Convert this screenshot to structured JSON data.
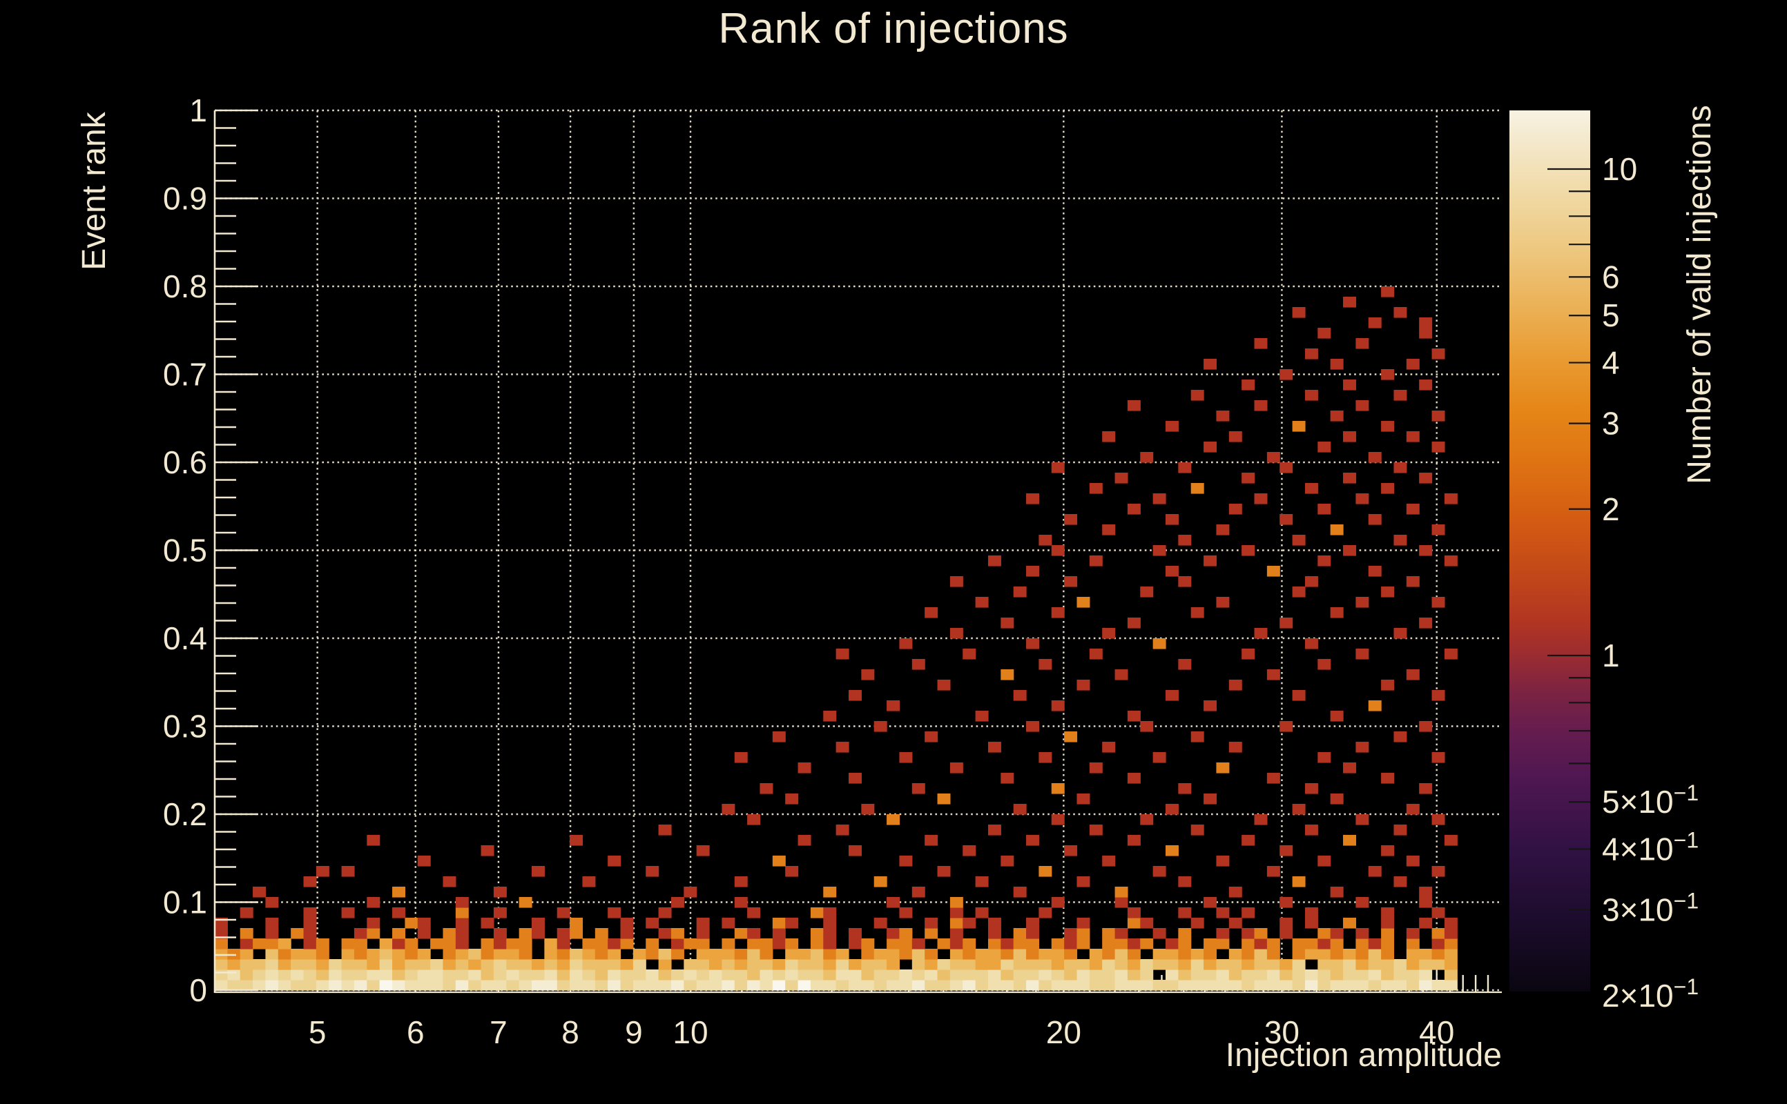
{
  "chart_data": {
    "type": "heatmap",
    "title": "Rank of injections",
    "xlabel": "Injection amplitude",
    "ylabel": "Event rank",
    "zlabel": "Number of valid injections",
    "x_scale": "log",
    "x_range": [
      4.13,
      45
    ],
    "x_ticks": [
      5,
      6,
      7,
      8,
      9,
      10,
      20,
      30,
      40
    ],
    "x_tick_labels": [
      "5",
      "6",
      "7",
      "8",
      "9",
      "10",
      "20",
      "30",
      "40"
    ],
    "x_minor_ticks": [
      11,
      12,
      13,
      14,
      15,
      16,
      17,
      18,
      19,
      21,
      22,
      23,
      24,
      25,
      26,
      27,
      28,
      29,
      31,
      32,
      33,
      34,
      35,
      36,
      37,
      38,
      39,
      41,
      42,
      43,
      44
    ],
    "y_scale": "linear",
    "y_range": [
      0,
      1
    ],
    "y_ticks": [
      0,
      0.1,
      0.2,
      0.3,
      0.4,
      0.5,
      0.6,
      0.7,
      0.8,
      0.9,
      1
    ],
    "y_tick_labels": [
      "0",
      "0.1",
      "0.2",
      "0.3",
      "0.4",
      "0.5",
      "0.6",
      "0.7",
      "0.8",
      "0.9",
      "1"
    ],
    "y_minor_step": 0.02,
    "z_scale": "log",
    "z_range": [
      0.2,
      13
    ],
    "grid": true,
    "colors": {
      "background": "#000000",
      "axis_text": "#f2e9d0",
      "gridline": "#efe6cc",
      "colorbar_tick": "#141414"
    },
    "z_tick_labels": [
      {
        "v": 10,
        "text": "10",
        "sup": null,
        "long": true
      },
      {
        "v": 6,
        "text": "6",
        "sup": null,
        "long": false
      },
      {
        "v": 5,
        "text": "5",
        "sup": null,
        "long": false
      },
      {
        "v": 4,
        "text": "4",
        "sup": null,
        "long": false
      },
      {
        "v": 3,
        "text": "3",
        "sup": null,
        "long": false
      },
      {
        "v": 2,
        "text": "2",
        "sup": null,
        "long": false
      },
      {
        "v": 1,
        "text": "1",
        "sup": null,
        "long": true
      },
      {
        "v": 0.5,
        "text": "5×10",
        "sup": "−1",
        "long": false
      },
      {
        "v": 0.4,
        "text": "4×10",
        "sup": "−1",
        "long": false
      },
      {
        "v": 0.3,
        "text": "3×10",
        "sup": "−1",
        "long": false
      },
      {
        "v": 0.2,
        "text": "2×10",
        "sup": "−1",
        "long": false
      }
    ],
    "z_unlabeled_ticks": [
      9,
      8,
      7,
      6,
      5,
      4,
      3,
      2,
      0.9,
      0.8,
      0.7,
      0.6,
      0.5,
      0.4,
      0.3
    ],
    "palette_stops": [
      {
        "offset": 0.0,
        "color": "#0a0610"
      },
      {
        "offset": 0.08,
        "color": "#1c0c2c"
      },
      {
        "offset": 0.16,
        "color": "#301143"
      },
      {
        "offset": 0.24,
        "color": "#4e1752"
      },
      {
        "offset": 0.3,
        "color": "#671d4e"
      },
      {
        "offset": 0.34,
        "color": "#7c2342"
      },
      {
        "offset": 0.38,
        "color": "#9a2c31"
      },
      {
        "offset": 0.42,
        "color": "#b23522"
      },
      {
        "offset": 0.48,
        "color": "#c44a18"
      },
      {
        "offset": 0.54,
        "color": "#d55d12"
      },
      {
        "offset": 0.6,
        "color": "#df7313"
      },
      {
        "offset": 0.66,
        "color": "#e58617"
      },
      {
        "offset": 0.72,
        "color": "#e99c33"
      },
      {
        "offset": 0.78,
        "color": "#ebb258"
      },
      {
        "offset": 0.84,
        "color": "#edc77e"
      },
      {
        "offset": 0.9,
        "color": "#f0d8a2"
      },
      {
        "offset": 0.95,
        "color": "#f3e5c2"
      },
      {
        "offset": 1.0,
        "color": "#f7f2e3"
      }
    ],
    "value_colors": {
      "1": "#b23420",
      "2": "#e2811b",
      "3": "#eba43e",
      "4": "#ecc06a",
      "5": "#edd391",
      "6": "#f0e0b0",
      "7": "#f5edd3",
      "8": "#faf7ee"
    },
    "n_cols": 98,
    "n_rows": 85,
    "band_rows": [
      "65567655676758766657566567756657566675667576858665665667556756657566655666556666656665756665665766",
      "56456565465566456655645655646546556456565546565546645565645556455654655645.645564556456545564556 45",
      "4344534435443534453434544343544435 3.44343443544353443.4354433544434435435443534434435.445344534435",
      "323.42332.3234323.2342332.324323.3242.333242.33423.233242.3233242332.3242.33232.3242.23323242.3323",
      "2.1223.12.22.312.221.2122.31.2212.2.122.2.2212.21.12.221.212.2122.212.2212.12.22.212.2212.212.2.12",
      "1.2.1.21...12.2.1.21..1.21.12.2.1..12.1..21.1..21.1..12.2.1..1.21..12.21..1.2..1.12.1..21.1.2.1.21",
      "1...1..1....1..21..1.1...1..2...1.1...1.1...21..1...1...1.21.1..1...1...21...1..1...1.1..2..1..1.1",
      "..1....1..1...1....2..1....1...1...1......1....21.....1...1.1....1......1...1..1.1....1.....1...1.",
      "....1.......1......1....2...........1....1...........1....2.......1....1......1.....1.....1....1.."
    ],
    "sparse_cells": [
      [
        9,
        3,
        1
      ],
      [
        9,
        14,
        2
      ],
      [
        9,
        22,
        1
      ],
      [
        9,
        37,
        1
      ],
      [
        9,
        48,
        2
      ],
      [
        9,
        55,
        1
      ],
      [
        9,
        63,
        1
      ],
      [
        9,
        71,
        2
      ],
      [
        9,
        80,
        1
      ],
      [
        9,
        88,
        1
      ],
      [
        9,
        95,
        1
      ],
      [
        10,
        7,
        1
      ],
      [
        10,
        18,
        1
      ],
      [
        10,
        29,
        1
      ],
      [
        10,
        41,
        1
      ],
      [
        10,
        52,
        2
      ],
      [
        10,
        60,
        1
      ],
      [
        10,
        68,
        1
      ],
      [
        10,
        76,
        1
      ],
      [
        10,
        85,
        2
      ],
      [
        10,
        93,
        1
      ],
      [
        11,
        8,
        1
      ],
      [
        11,
        10,
        1
      ],
      [
        11,
        25,
        1
      ],
      [
        11,
        34,
        1
      ],
      [
        11,
        45,
        1
      ],
      [
        11,
        57,
        1
      ],
      [
        11,
        65,
        2
      ],
      [
        11,
        74,
        1
      ],
      [
        11,
        83,
        1
      ],
      [
        11,
        91,
        1
      ],
      [
        11,
        96,
        1
      ],
      [
        12,
        16,
        1
      ],
      [
        12,
        31,
        1
      ],
      [
        12,
        44,
        2
      ],
      [
        12,
        54,
        1
      ],
      [
        12,
        62,
        1
      ],
      [
        12,
        70,
        1
      ],
      [
        12,
        79,
        1
      ],
      [
        12,
        87,
        1
      ],
      [
        12,
        94,
        1
      ],
      [
        13,
        21,
        1
      ],
      [
        13,
        38,
        1
      ],
      [
        13,
        50,
        1
      ],
      [
        13,
        59,
        1
      ],
      [
        13,
        67,
        1
      ],
      [
        13,
        75,
        2
      ],
      [
        13,
        84,
        1
      ],
      [
        13,
        92,
        1
      ],
      [
        14,
        12,
        1
      ],
      [
        14,
        28,
        1
      ],
      [
        14,
        46,
        1
      ],
      [
        14,
        56,
        1
      ],
      [
        14,
        64,
        1
      ],
      [
        14,
        72,
        1
      ],
      [
        14,
        81,
        1
      ],
      [
        14,
        89,
        2
      ],
      [
        14,
        97,
        1
      ],
      [
        15,
        35,
        1
      ],
      [
        15,
        49,
        1
      ],
      [
        15,
        61,
        1
      ],
      [
        15,
        69,
        1
      ],
      [
        15,
        77,
        1
      ],
      [
        15,
        86,
        1
      ],
      [
        15,
        93,
        1
      ],
      [
        16,
        42,
        1
      ],
      [
        16,
        53,
        2
      ],
      [
        16,
        66,
        1
      ],
      [
        16,
        73,
        1
      ],
      [
        16,
        82,
        1
      ],
      [
        16,
        90,
        1
      ],
      [
        16,
        96,
        1
      ],
      [
        17,
        40,
        1
      ],
      [
        17,
        51,
        1
      ],
      [
        17,
        63,
        1
      ],
      [
        17,
        75,
        1
      ],
      [
        17,
        85,
        1
      ],
      [
        17,
        94,
        1
      ],
      [
        18,
        45,
        1
      ],
      [
        18,
        57,
        2
      ],
      [
        18,
        68,
        1
      ],
      [
        18,
        78,
        1
      ],
      [
        18,
        88,
        1
      ],
      [
        19,
        43,
        1
      ],
      [
        19,
        55,
        1
      ],
      [
        19,
        66,
        2
      ],
      [
        19,
        76,
        1
      ],
      [
        19,
        86,
        1
      ],
      [
        19,
        95,
        1
      ],
      [
        20,
        50,
        1
      ],
      [
        20,
        62,
        1
      ],
      [
        20,
        72,
        1
      ],
      [
        20,
        83,
        1
      ],
      [
        20,
        92,
        1
      ],
      [
        21,
        46,
        1
      ],
      [
        21,
        58,
        1
      ],
      [
        21,
        69,
        1
      ],
      [
        21,
        79,
        2
      ],
      [
        21,
        89,
        1
      ],
      [
        22,
        41,
        1
      ],
      [
        22,
        54,
        1
      ],
      [
        22,
        65,
        1
      ],
      [
        22,
        74,
        1
      ],
      [
        22,
        87,
        1
      ],
      [
        22,
        96,
        1
      ],
      [
        23,
        49,
        1
      ],
      [
        23,
        61,
        1
      ],
      [
        23,
        70,
        1
      ],
      [
        23,
        80,
        1
      ],
      [
        23,
        90,
        1
      ],
      [
        24,
        44,
        1
      ],
      [
        24,
        56,
        1
      ],
      [
        24,
        67,
        2
      ],
      [
        24,
        77,
        1
      ],
      [
        24,
        93,
        1
      ],
      [
        25,
        52,
        1
      ],
      [
        25,
        64,
        1
      ],
      [
        25,
        73,
        1
      ],
      [
        25,
        84,
        1
      ],
      [
        25,
        95,
        1
      ],
      [
        26,
        48,
        1
      ],
      [
        26,
        60,
        1
      ],
      [
        26,
        72,
        1
      ],
      [
        26,
        88,
        1
      ],
      [
        27,
        53,
        1
      ],
      [
        27,
        66,
        1
      ],
      [
        27,
        78,
        1
      ],
      [
        27,
        91,
        2
      ],
      [
        28,
        50,
        1
      ],
      [
        28,
        63,
        1
      ],
      [
        28,
        75,
        1
      ],
      [
        28,
        85,
        1
      ],
      [
        28,
        96,
        1
      ],
      [
        29,
        57,
        1
      ],
      [
        29,
        68,
        1
      ],
      [
        29,
        80,
        1
      ],
      [
        29,
        92,
        1
      ],
      [
        30,
        51,
        1
      ],
      [
        30,
        62,
        2
      ],
      [
        30,
        71,
        1
      ],
      [
        30,
        83,
        1
      ],
      [
        30,
        94,
        1
      ],
      [
        31,
        55,
        1
      ],
      [
        31,
        65,
        1
      ],
      [
        31,
        76,
        1
      ],
      [
        31,
        87,
        1
      ],
      [
        32,
        49,
        1
      ],
      [
        32,
        59,
        1
      ],
      [
        32,
        69,
        1
      ],
      [
        32,
        81,
        1
      ],
      [
        32,
        90,
        1
      ],
      [
        32,
        97,
        1
      ],
      [
        33,
        54,
        1
      ],
      [
        33,
        64,
        1
      ],
      [
        33,
        74,
        2
      ],
      [
        33,
        86,
        1
      ],
      [
        34,
        58,
        1
      ],
      [
        34,
        70,
        1
      ],
      [
        34,
        82,
        1
      ],
      [
        34,
        93,
        1
      ],
      [
        35,
        62,
        1
      ],
      [
        35,
        72,
        1
      ],
      [
        35,
        84,
        1
      ],
      [
        35,
        95,
        1
      ],
      [
        36,
        56,
        1
      ],
      [
        36,
        66,
        1
      ],
      [
        36,
        77,
        1
      ],
      [
        36,
        88,
        1
      ],
      [
        37,
        60,
        1
      ],
      [
        37,
        68,
        2
      ],
      [
        37,
        79,
        1
      ],
      [
        37,
        90,
        1
      ],
      [
        37,
        96,
        1
      ],
      [
        38,
        63,
        1
      ],
      [
        38,
        73,
        1
      ],
      [
        38,
        85,
        1
      ],
      [
        38,
        92,
        1
      ],
      [
        39,
        58,
        1
      ],
      [
        39,
        67,
        1
      ],
      [
        39,
        76,
        1
      ],
      [
        39,
        86,
        1
      ],
      [
        39,
        94,
        1
      ],
      [
        40,
        64,
        1
      ],
      [
        40,
        75,
        1
      ],
      [
        40,
        83,
        2
      ],
      [
        40,
        91,
        1
      ],
      [
        41,
        61,
        1
      ],
      [
        41,
        69,
        1
      ],
      [
        41,
        78,
        1
      ],
      [
        41,
        87,
        1
      ],
      [
        41,
        97,
        1
      ],
      [
        42,
        66,
        1
      ],
      [
        42,
        74,
        1
      ],
      [
        42,
        81,
        1
      ],
      [
        42,
        89,
        1
      ],
      [
        42,
        95,
        1
      ],
      [
        43,
        65,
        1
      ],
      [
        43,
        76,
        1
      ],
      [
        43,
        85,
        1
      ],
      [
        43,
        93,
        1
      ],
      [
        44,
        70,
        1
      ],
      [
        44,
        79,
        1
      ],
      [
        44,
        88,
        2
      ],
      [
        44,
        96,
        1
      ],
      [
        45,
        67,
        1
      ],
      [
        45,
        75,
        1
      ],
      [
        45,
        84,
        1
      ],
      [
        45,
        91,
        1
      ],
      [
        46,
        72,
        1
      ],
      [
        46,
        80,
        1
      ],
      [
        46,
        87,
        1
      ],
      [
        46,
        94,
        1
      ],
      [
        47,
        64,
        1
      ],
      [
        47,
        74,
        1
      ],
      [
        47,
        82,
        1
      ],
      [
        47,
        90,
        1
      ],
      [
        47,
        97,
        1
      ],
      [
        48,
        69,
        1
      ],
      [
        48,
        77,
        2
      ],
      [
        48,
        86,
        1
      ],
      [
        48,
        92,
        1
      ],
      [
        49,
        71,
        1
      ],
      [
        49,
        81,
        1
      ],
      [
        49,
        89,
        1
      ],
      [
        49,
        95,
        1
      ],
      [
        50,
        66,
        1
      ],
      [
        50,
        76,
        1
      ],
      [
        50,
        84,
        1
      ],
      [
        50,
        93,
        1
      ],
      [
        51,
        73,
        1
      ],
      [
        51,
        83,
        1
      ],
      [
        51,
        91,
        1
      ],
      [
        52,
        78,
        1
      ],
      [
        52,
        87,
        1
      ],
      [
        52,
        96,
        1
      ],
      [
        53,
        70,
        1
      ],
      [
        53,
        80,
        1
      ],
      [
        53,
        89,
        1
      ],
      [
        53,
        94,
        1
      ],
      [
        54,
        75,
        1
      ],
      [
        54,
        85,
        2
      ],
      [
        54,
        92,
        1
      ],
      [
        55,
        79,
        1
      ],
      [
        55,
        88,
        1
      ],
      [
        55,
        96,
        1
      ],
      [
        56,
        72,
        1
      ],
      [
        56,
        82,
        1
      ],
      [
        56,
        90,
        1
      ],
      [
        57,
        77,
        1
      ],
      [
        57,
        86,
        1
      ],
      [
        57,
        93,
        1
      ],
      [
        58,
        81,
        1
      ],
      [
        58,
        89,
        1
      ],
      [
        58,
        95,
        1
      ],
      [
        59,
        84,
        1
      ],
      [
        59,
        92,
        1
      ],
      [
        60,
        78,
        1
      ],
      [
        60,
        88,
        1
      ],
      [
        60,
        94,
        1
      ],
      [
        61,
        86,
        1
      ],
      [
        61,
        96,
        1
      ],
      [
        62,
        82,
        1
      ],
      [
        62,
        90,
        1
      ],
      [
        63,
        87,
        1
      ],
      [
        63,
        95,
        1
      ],
      [
        64,
        91,
        1
      ],
      [
        64,
        95,
        1
      ],
      [
        65,
        85,
        1
      ],
      [
        65,
        93,
        1
      ],
      [
        66,
        89,
        1
      ],
      [
        67,
        92,
        1
      ]
    ]
  }
}
